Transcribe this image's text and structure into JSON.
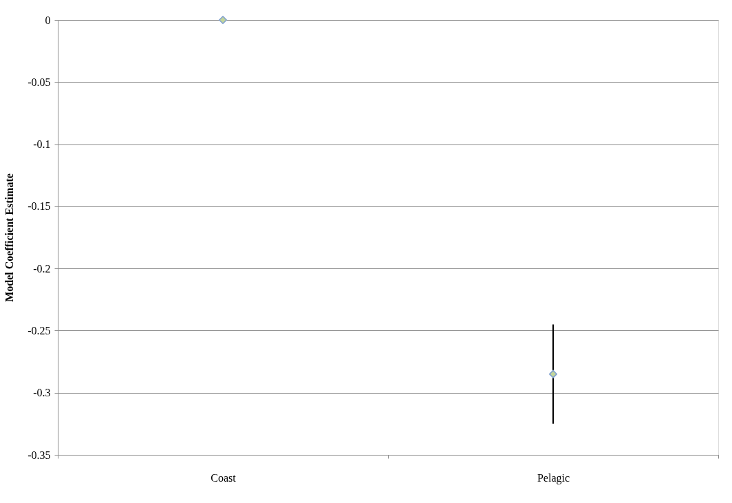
{
  "chart_data": {
    "type": "scatter",
    "ylabel": "Model Coefficient Estimate",
    "categories": [
      "Coast",
      "Pelagic"
    ],
    "series": [
      {
        "color": "#c3d69b",
        "values": [
          0,
          -0.285
        ],
        "errors": [
          null,
          0.04
        ]
      }
    ],
    "ylim": [
      -0.35,
      0
    ],
    "yticks": [
      -0.35,
      -0.3,
      -0.25,
      -0.2,
      -0.15,
      -0.1,
      -0.05,
      0
    ],
    "grid": "y",
    "marker": "diamond"
  }
}
